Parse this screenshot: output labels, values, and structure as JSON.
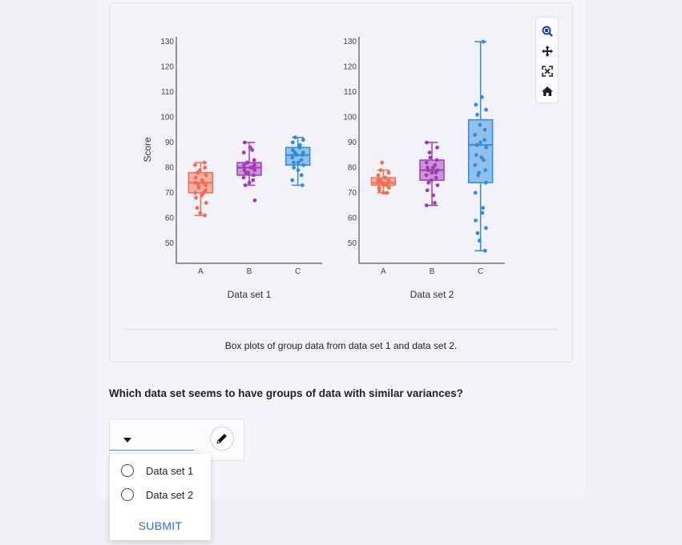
{
  "figure": {
    "caption": "Box plots of group data from data set 1 and data set 2.",
    "y_axis_label": "Score",
    "y_ticks": [
      50,
      60,
      70,
      80,
      90,
      100,
      110,
      120,
      130
    ],
    "subplot_titles": [
      "Data set 1",
      "Data set 2"
    ],
    "colors": {
      "A": "#f26d4f",
      "B": "#a23ab5",
      "C": "#2f8de0"
    }
  },
  "modebar": {
    "icons": [
      "zoom-icon",
      "pan-icon",
      "autoscale-icon",
      "home-icon"
    ]
  },
  "question": {
    "text": "Which data set seems to have groups of data with similar variances?"
  },
  "answer": {
    "options": [
      "Data set 1",
      "Data set 2"
    ],
    "submit_label": "SUBMIT"
  },
  "chart_data": [
    {
      "type": "box",
      "xlabel": "Data set 1",
      "ylabel": "Score",
      "categories": [
        "A",
        "B",
        "C"
      ],
      "ylim": [
        42,
        131
      ],
      "boxes": [
        {
          "name": "A",
          "min": 61,
          "q1": 70,
          "median": 74,
          "q3": 78,
          "max": 82,
          "points": [
            82,
            81,
            80,
            79,
            78,
            77,
            76,
            75,
            74,
            74,
            73,
            73,
            72,
            71,
            70,
            70,
            69,
            68,
            66,
            64,
            62,
            61
          ]
        },
        {
          "name": "B",
          "min": 73,
          "q1": 77,
          "median": 80,
          "q3": 82,
          "max": 90,
          "points": [
            90,
            88,
            87,
            86,
            83,
            82,
            82,
            81,
            81,
            80,
            80,
            79,
            79,
            78,
            78,
            77,
            76,
            75,
            74,
            73,
            67
          ]
        },
        {
          "name": "C",
          "min": 73,
          "q1": 81,
          "median": 85,
          "q3": 88,
          "max": 92,
          "points": [
            92,
            91,
            90,
            89,
            88,
            87,
            86,
            86,
            85,
            85,
            84,
            83,
            82,
            82,
            81,
            80,
            79,
            77,
            75,
            73
          ]
        }
      ]
    },
    {
      "type": "box",
      "xlabel": "Data set 2",
      "ylabel": "",
      "categories": [
        "A",
        "B",
        "C"
      ],
      "ylim": [
        42,
        131
      ],
      "boxes": [
        {
          "name": "A",
          "min": 70,
          "q1": 73,
          "median": 74,
          "q3": 76,
          "max": 79,
          "points": [
            82,
            79,
            78,
            77,
            76,
            76,
            75,
            75,
            75,
            74,
            74,
            74,
            73,
            73,
            72,
            72,
            71,
            70,
            70
          ]
        },
        {
          "name": "B",
          "min": 65,
          "q1": 75,
          "median": 79,
          "q3": 83,
          "max": 90,
          "points": [
            90,
            88,
            86,
            84,
            83,
            82,
            81,
            80,
            80,
            79,
            79,
            78,
            78,
            77,
            76,
            75,
            74,
            73,
            71,
            69,
            66,
            65
          ]
        },
        {
          "name": "C",
          "min": 47,
          "q1": 74,
          "median": 89,
          "q3": 99,
          "max": 130,
          "points": [
            130,
            108,
            105,
            103,
            101,
            97,
            95,
            93,
            91,
            90,
            89,
            88,
            85,
            84,
            83,
            81,
            79,
            78,
            77,
            74,
            70,
            64,
            62,
            59,
            56,
            54,
            51,
            47
          ]
        }
      ]
    }
  ]
}
